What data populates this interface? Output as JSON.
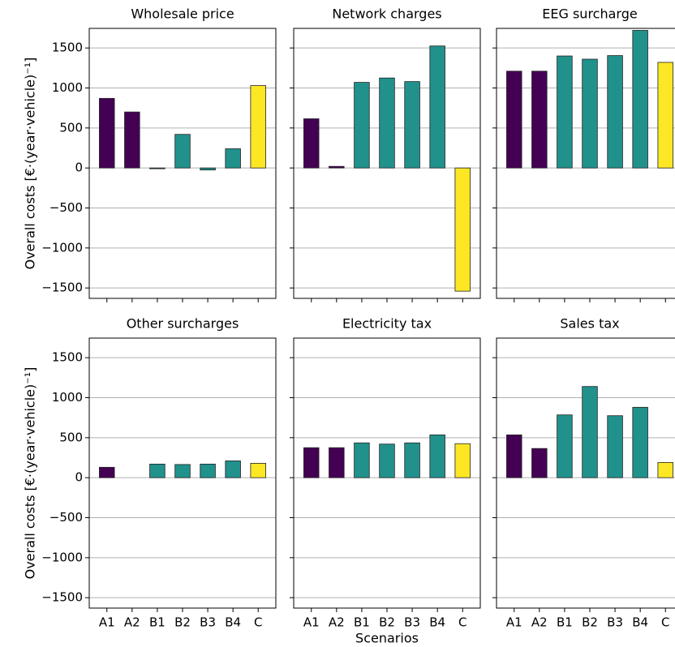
{
  "chart_data": [
    {
      "type": "bar",
      "title": "Wholesale price",
      "ylabel": "Overall costs [€·(year·vehicle)⁻¹]",
      "values": [
        870,
        700,
        -10,
        420,
        -25,
        240,
        1030
      ],
      "colors": [
        "#440154",
        "#440154",
        "#21918c",
        "#21918c",
        "#21918c",
        "#21918c",
        "#fde725"
      ],
      "ylim": [
        -1630,
        1745
      ],
      "yticks": [
        {
          "value": -1500,
          "label": "−1500"
        },
        {
          "value": -1000,
          "label": "−1000"
        },
        {
          "value": -500,
          "label": "−500"
        },
        0,
        500,
        1000,
        1500
      ],
      "grid": true
    },
    {
      "type": "bar",
      "title": "Network charges",
      "values": [
        615,
        20,
        1070,
        1125,
        1080,
        1525,
        -1540
      ],
      "colors": [
        "#440154",
        "#440154",
        "#21918c",
        "#21918c",
        "#21918c",
        "#21918c",
        "#fde725"
      ],
      "ylim": [
        -1630,
        1745
      ],
      "yticks": [
        -1500,
        -1000,
        -500,
        0,
        500,
        1000,
        1500
      ],
      "grid": true
    },
    {
      "type": "bar",
      "title": "EEG surcharge",
      "values": [
        1210,
        1210,
        1400,
        1360,
        1405,
        1720,
        1320
      ],
      "colors": [
        "#440154",
        "#440154",
        "#21918c",
        "#21918c",
        "#21918c",
        "#21918c",
        "#fde725"
      ],
      "ylim": [
        -1630,
        1745
      ],
      "yticks": [
        -1500,
        -1000,
        -500,
        0,
        500,
        1000,
        1500
      ],
      "grid": true
    },
    {
      "type": "bar",
      "title": "Other surcharges",
      "ylabel": "Overall costs [€·(year·vehicle)⁻¹]",
      "categories": [
        "A1",
        "A2",
        "B1",
        "B2",
        "B3",
        "B4",
        "C"
      ],
      "values": [
        130,
        0,
        170,
        165,
        170,
        210,
        180
      ],
      "colors": [
        "#440154",
        "#440154",
        "#21918c",
        "#21918c",
        "#21918c",
        "#21918c",
        "#fde725"
      ],
      "ylim": [
        -1630,
        1745
      ],
      "yticks": [
        {
          "value": -1500,
          "label": "−1500"
        },
        {
          "value": -1000,
          "label": "−1000"
        },
        {
          "value": -500,
          "label": "−500"
        },
        0,
        500,
        1000,
        1500
      ],
      "grid": true
    },
    {
      "type": "bar",
      "title": "Electricity tax",
      "xlabel": "Scenarios",
      "categories": [
        "A1",
        "A2",
        "B1",
        "B2",
        "B3",
        "B4",
        "C"
      ],
      "values": [
        375,
        375,
        435,
        420,
        435,
        535,
        425
      ],
      "colors": [
        "#440154",
        "#440154",
        "#21918c",
        "#21918c",
        "#21918c",
        "#21918c",
        "#fde725"
      ],
      "ylim": [
        -1630,
        1745
      ],
      "yticks": [
        -1500,
        -1000,
        -500,
        0,
        500,
        1000,
        1500
      ],
      "grid": true
    },
    {
      "type": "bar",
      "title": "Sales tax",
      "categories": [
        "A1",
        "A2",
        "B1",
        "B2",
        "B3",
        "B4",
        "C"
      ],
      "values": [
        535,
        365,
        785,
        1140,
        775,
        880,
        190
      ],
      "colors": [
        "#440154",
        "#440154",
        "#21918c",
        "#21918c",
        "#21918c",
        "#21918c",
        "#fde725"
      ],
      "ylim": [
        -1630,
        1745
      ],
      "yticks": [
        -1500,
        -1000,
        -500,
        0,
        500,
        1000,
        1500
      ],
      "grid": true
    }
  ]
}
